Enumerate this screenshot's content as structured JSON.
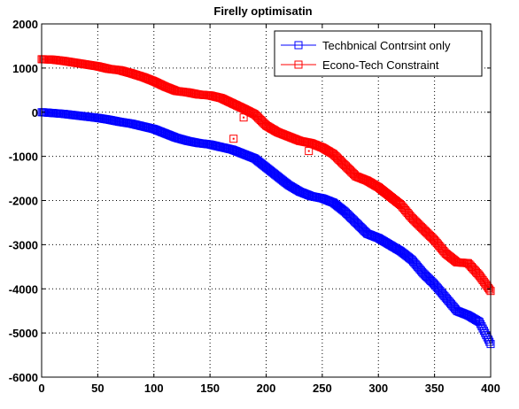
{
  "chart_data": {
    "type": "line",
    "title": "Firelly optimisatin",
    "xlabel": "",
    "ylabel": "",
    "xlim": [
      0,
      400
    ],
    "ylim": [
      -6000,
      2000
    ],
    "xticks": [
      0,
      50,
      100,
      150,
      200,
      250,
      300,
      350,
      400
    ],
    "yticks": [
      -6000,
      -5000,
      -4000,
      -3000,
      -2000,
      -1000,
      0,
      1000,
      2000
    ],
    "grid": true,
    "grid_style": "dotted",
    "legend_position": "top-right",
    "marker": "square",
    "series": [
      {
        "name": "Techbnical Contrsint only",
        "color": "#0000ff",
        "points": [
          [
            0,
            0
          ],
          [
            10,
            -20
          ],
          [
            20,
            -40
          ],
          [
            30,
            -70
          ],
          [
            40,
            -100
          ],
          [
            50,
            -130
          ],
          [
            60,
            -170
          ],
          [
            70,
            -220
          ],
          [
            80,
            -260
          ],
          [
            90,
            -320
          ],
          [
            100,
            -380
          ],
          [
            110,
            -480
          ],
          [
            120,
            -580
          ],
          [
            130,
            -650
          ],
          [
            140,
            -700
          ],
          [
            150,
            -730
          ],
          [
            160,
            -790
          ],
          [
            170,
            -850
          ],
          [
            180,
            -950
          ],
          [
            190,
            -1050
          ],
          [
            200,
            -1250
          ],
          [
            210,
            -1450
          ],
          [
            220,
            -1650
          ],
          [
            230,
            -1800
          ],
          [
            240,
            -1900
          ],
          [
            250,
            -1950
          ],
          [
            260,
            -2050
          ],
          [
            270,
            -2250
          ],
          [
            280,
            -2500
          ],
          [
            290,
            -2750
          ],
          [
            300,
            -2850
          ],
          [
            310,
            -3000
          ],
          [
            320,
            -3150
          ],
          [
            330,
            -3350
          ],
          [
            340,
            -3650
          ],
          [
            350,
            -3900
          ],
          [
            360,
            -4200
          ],
          [
            370,
            -4500
          ],
          [
            380,
            -4600
          ],
          [
            390,
            -4750
          ],
          [
            400,
            -5250
          ]
        ]
      },
      {
        "name": "Econo-Tech Constraint",
        "color": "#ff0000",
        "points": [
          [
            0,
            1200
          ],
          [
            10,
            1190
          ],
          [
            20,
            1160
          ],
          [
            30,
            1120
          ],
          [
            40,
            1080
          ],
          [
            50,
            1040
          ],
          [
            60,
            980
          ],
          [
            70,
            950
          ],
          [
            80,
            880
          ],
          [
            90,
            800
          ],
          [
            100,
            700
          ],
          [
            110,
            580
          ],
          [
            120,
            480
          ],
          [
            130,
            450
          ],
          [
            140,
            400
          ],
          [
            150,
            380
          ],
          [
            160,
            320
          ],
          [
            170,
            200
          ],
          [
            180,
            80
          ],
          [
            190,
            -50
          ],
          [
            200,
            -300
          ],
          [
            210,
            -450
          ],
          [
            220,
            -550
          ],
          [
            230,
            -650
          ],
          [
            240,
            -700
          ],
          [
            250,
            -800
          ],
          [
            260,
            -950
          ],
          [
            270,
            -1200
          ],
          [
            280,
            -1450
          ],
          [
            290,
            -1550
          ],
          [
            300,
            -1700
          ],
          [
            310,
            -1900
          ],
          [
            320,
            -2100
          ],
          [
            330,
            -2400
          ],
          [
            340,
            -2650
          ],
          [
            350,
            -2900
          ],
          [
            360,
            -3200
          ],
          [
            370,
            -3400
          ],
          [
            380,
            -3420
          ],
          [
            390,
            -3700
          ],
          [
            400,
            -4050
          ]
        ],
        "scattered_points": [
          [
            171,
            -600
          ],
          [
            180,
            -120
          ],
          [
            238,
            -880
          ]
        ]
      }
    ]
  }
}
